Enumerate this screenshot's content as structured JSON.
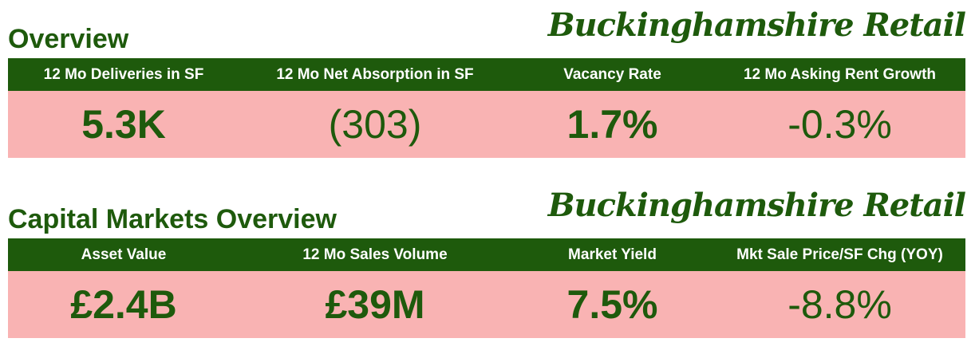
{
  "sections": [
    {
      "title": "Overview",
      "brand": "Buckinghamshire Retail",
      "metrics": [
        {
          "label": "12 Mo Deliveries in SF",
          "value": "5.3K"
        },
        {
          "label": "12 Mo Net Absorption in SF",
          "value": "(303)"
        },
        {
          "label": "Vacancy Rate",
          "value": "1.7%"
        },
        {
          "label": "12 Mo Asking Rent Growth",
          "value": "-0.3%"
        }
      ]
    },
    {
      "title": "Capital Markets Overview",
      "brand": "Buckinghamshire Retail",
      "metrics": [
        {
          "label": "Asset Value",
          "value": "£2.4B"
        },
        {
          "label": "12 Mo Sales Volume",
          "value": "£39M"
        },
        {
          "label": "Market Yield",
          "value": "7.5%"
        },
        {
          "label": "Mkt Sale Price/SF Chg (YOY)",
          "value": "-8.8%"
        }
      ]
    }
  ]
}
